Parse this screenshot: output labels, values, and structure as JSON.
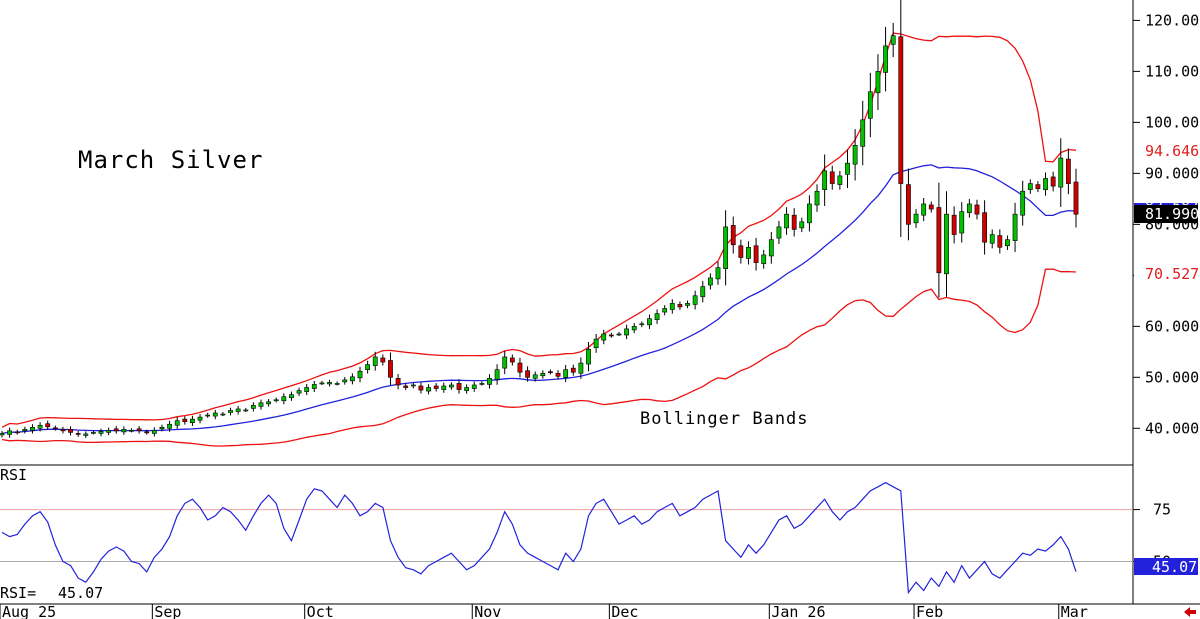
{
  "chart_data": {
    "type": "candlestick",
    "title": "March Silver",
    "annotation": "Bollinger Bands",
    "price_axis": {
      "ylim": [
        33,
        124
      ],
      "ticks": [
        "40.000",
        "50.000",
        "60.000",
        "70.000",
        "80.000",
        "90.000",
        "100.000",
        "110.000",
        "120.000"
      ],
      "tick_values": [
        40,
        50,
        60,
        70,
        80,
        90,
        100,
        110,
        120
      ]
    },
    "rsi_axis": {
      "ylim": [
        30,
        96
      ],
      "ticks": [
        "50",
        "75"
      ],
      "tick_values": [
        50,
        75
      ],
      "overbought": 75,
      "midline": 50
    },
    "x_labels": [
      "Aug 25",
      "Sep",
      "Oct",
      "Nov",
      "Dec",
      "Jan 26",
      "Feb",
      "Mar"
    ],
    "x_label_index": [
      0,
      20,
      40,
      62,
      80,
      101,
      120,
      139
    ],
    "last_price": "81.990",
    "upper_band_value": "94.646",
    "lower_band_value": "70.527",
    "middle_band_value": "82.587",
    "rsi_name": "RSI",
    "rsi_label": "RSI=",
    "rsi_value": "45.07",
    "colors": {
      "up": "#00c000",
      "down": "#d00000",
      "upper_band": "#ee1111",
      "lower_band": "#ee1111",
      "middle_band": "#2222dd",
      "rsi": "#2222dd",
      "overbought_line": "#f0a0a0",
      "midline": "#aaaaaa"
    },
    "close": [
      39,
      39.5,
      39.2,
      39.8,
      40.2,
      40.6,
      40.3,
      40.0,
      39.5,
      39.2,
      38.8,
      38.9,
      39.2,
      39.4,
      39.6,
      39.5,
      39.8,
      39.6,
      39.5,
      39.2,
      39.6,
      40.2,
      40.8,
      41.5,
      41.3,
      41.8,
      42.2,
      42.6,
      43.0,
      42.8,
      43.5,
      43.8,
      43.6,
      44.5,
      45.0,
      45.2,
      45.6,
      46.2,
      46.6,
      47.4,
      48.0,
      48.6,
      48.9,
      49.0,
      48.8,
      49.5,
      50.1,
      51.2,
      52.5,
      54.0,
      53.0,
      50.0,
      48.5,
      48.0,
      48.5,
      47.5,
      48.0,
      47.8,
      48.3,
      48.5,
      47.6,
      48.0,
      48.5,
      48.8,
      49.8,
      51.5,
      54.0,
      53.0,
      51.0,
      50.0,
      50.5,
      50.8,
      51.0,
      50.2,
      51.5,
      51.0,
      52.8,
      55.5,
      57.5,
      58.5,
      58.2,
      58.5,
      59.5,
      60.0,
      60.5,
      61.5,
      62.5,
      63.5,
      64.5,
      63.8,
      64.5,
      66.0,
      67.8,
      69.5,
      71.5,
      79.5,
      76.0,
      73.5,
      75.5,
      72.5,
      74.0,
      77.0,
      79.5,
      82.0,
      79.0,
      80.5,
      84.0,
      86.5,
      90.5,
      88.0,
      89.5,
      92.0,
      95.5,
      100.5,
      106.0,
      110.0,
      115.0,
      117.0,
      88.0,
      80.0,
      82.0,
      84.0,
      83.0,
      70.5,
      82.0,
      78.0,
      82.5,
      84.0,
      82.0,
      76.5,
      78.0,
      75.5,
      77.0,
      82.0,
      86.5,
      88.0,
      87.0,
      89.0,
      87.5,
      93.0,
      88.0,
      81.99
    ],
    "rsi": [
      64,
      62,
      63,
      68,
      72,
      74,
      69,
      58,
      50,
      48,
      42,
      40,
      45,
      51,
      55,
      57,
      55,
      50,
      49,
      45,
      52,
      56,
      62,
      72,
      78,
      80,
      76,
      70,
      72,
      76,
      74,
      70,
      65,
      72,
      78,
      82,
      78,
      66,
      60,
      70,
      80,
      85,
      84,
      80,
      76,
      82,
      78,
      72,
      74,
      78,
      76,
      60,
      52,
      47,
      46,
      44,
      48,
      50,
      52,
      54,
      50,
      46,
      48,
      52,
      56,
      64,
      74,
      68,
      58,
      54,
      52,
      50,
      48,
      46,
      54,
      50,
      56,
      72,
      78,
      80,
      74,
      68,
      70,
      72,
      68,
      70,
      74,
      76,
      78,
      72,
      74,
      76,
      80,
      82,
      84,
      60,
      56,
      52,
      58,
      54,
      58,
      64,
      70,
      72,
      66,
      68,
      72,
      76,
      80,
      74,
      70,
      74,
      76,
      80,
      84,
      86,
      88,
      86,
      84,
      35,
      40,
      36,
      42,
      38,
      45,
      40,
      48,
      42,
      46,
      50,
      44,
      42,
      46,
      50,
      54,
      53,
      56,
      55,
      58,
      62,
      56,
      45.07
    ]
  }
}
